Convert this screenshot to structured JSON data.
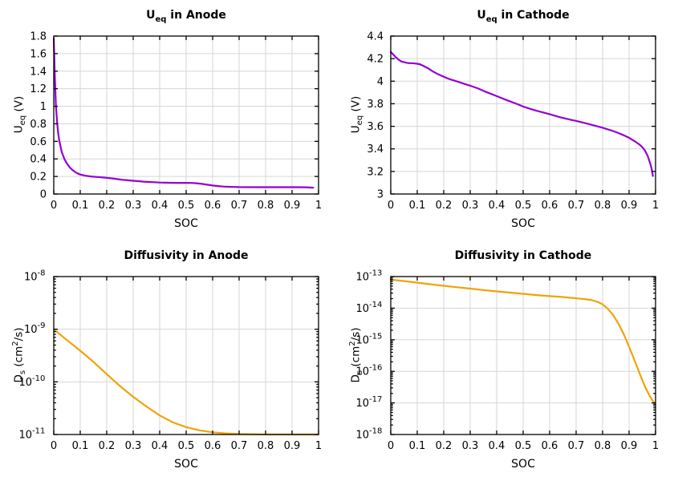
{
  "style": {
    "background": "#ffffff",
    "grid_color": "#d6d6d6",
    "border_color": "#000000",
    "text_color": "#000000",
    "purple": "#9400d3",
    "orange": "#f0a30a"
  },
  "chart_data": [
    {
      "id": "ueq-anode",
      "type": "line",
      "title": {
        "prefix": "U",
        "sub": "eq",
        "rest": " in Anode"
      },
      "xlabel": "SOC",
      "ylabel": {
        "prefix": "U",
        "sub": "eq",
        "mid": " (V)",
        "sup": "",
        "rest": ""
      },
      "color": "#9400d3",
      "grid": true,
      "xlim": [
        0,
        1
      ],
      "x_ticks": [
        0,
        0.1,
        0.2,
        0.3,
        0.4,
        0.5,
        0.6,
        0.7,
        0.8,
        0.9,
        1
      ],
      "x_tick_labels": [
        "0",
        "0.1",
        "0.2",
        "0.3",
        "0.4",
        "0.5",
        "0.6",
        "0.7",
        "0.8",
        "0.9",
        "1"
      ],
      "y_scale": "linear",
      "ylim": [
        0,
        1.8
      ],
      "y_ticks": [
        0,
        0.2,
        0.4,
        0.6,
        0.8,
        1,
        1.2,
        1.4,
        1.6,
        1.8
      ],
      "y_tick_labels": [
        "0",
        "0.2",
        "0.4",
        "0.6",
        "0.8",
        "1",
        "1.2",
        "1.4",
        "1.6",
        "1.8"
      ],
      "points": [
        [
          0,
          1.77
        ],
        [
          0.002,
          1.55
        ],
        [
          0.004,
          1.35
        ],
        [
          0.006,
          1.18
        ],
        [
          0.008,
          1.02
        ],
        [
          0.012,
          0.84
        ],
        [
          0.016,
          0.71
        ],
        [
          0.02,
          0.62
        ],
        [
          0.03,
          0.48
        ],
        [
          0.04,
          0.4
        ],
        [
          0.05,
          0.345
        ],
        [
          0.06,
          0.305
        ],
        [
          0.07,
          0.275
        ],
        [
          0.08,
          0.252
        ],
        [
          0.09,
          0.235
        ],
        [
          0.1,
          0.222
        ],
        [
          0.12,
          0.208
        ],
        [
          0.14,
          0.2
        ],
        [
          0.16,
          0.195
        ],
        [
          0.18,
          0.19
        ],
        [
          0.2,
          0.185
        ],
        [
          0.22,
          0.178
        ],
        [
          0.24,
          0.17
        ],
        [
          0.26,
          0.162
        ],
        [
          0.28,
          0.156
        ],
        [
          0.3,
          0.151
        ],
        [
          0.32,
          0.146
        ],
        [
          0.34,
          0.141
        ],
        [
          0.36,
          0.137
        ],
        [
          0.38,
          0.134
        ],
        [
          0.4,
          0.131
        ],
        [
          0.42,
          0.129
        ],
        [
          0.44,
          0.128
        ],
        [
          0.46,
          0.127
        ],
        [
          0.48,
          0.127
        ],
        [
          0.5,
          0.127
        ],
        [
          0.52,
          0.126
        ],
        [
          0.54,
          0.122
        ],
        [
          0.56,
          0.115
        ],
        [
          0.58,
          0.106
        ],
        [
          0.6,
          0.097
        ],
        [
          0.62,
          0.09
        ],
        [
          0.64,
          0.085
        ],
        [
          0.66,
          0.082
        ],
        [
          0.68,
          0.08
        ],
        [
          0.7,
          0.079
        ],
        [
          0.75,
          0.078
        ],
        [
          0.8,
          0.078
        ],
        [
          0.85,
          0.078
        ],
        [
          0.9,
          0.078
        ],
        [
          0.95,
          0.077
        ],
        [
          0.98,
          0.072
        ]
      ]
    },
    {
      "id": "ueq-cathode",
      "type": "line",
      "title": {
        "prefix": "U",
        "sub": "eq",
        "rest": " in Cathode"
      },
      "xlabel": "SOC",
      "ylabel": {
        "prefix": "U",
        "sub": "eq",
        "mid": " (V)",
        "sup": "",
        "rest": ""
      },
      "color": "#9400d3",
      "grid": true,
      "xlim": [
        0,
        1
      ],
      "x_ticks": [
        0,
        0.1,
        0.2,
        0.3,
        0.4,
        0.5,
        0.6,
        0.7,
        0.8,
        0.9,
        1
      ],
      "x_tick_labels": [
        "0",
        "0.1",
        "0.2",
        "0.3",
        "0.4",
        "0.5",
        "0.6",
        "0.7",
        "0.8",
        "0.9",
        "1"
      ],
      "y_scale": "linear",
      "ylim": [
        3,
        4.4
      ],
      "y_ticks": [
        3,
        3.2,
        3.4,
        3.6,
        3.8,
        4,
        4.2,
        4.4
      ],
      "y_tick_labels": [
        "3",
        "3.2",
        "3.4",
        "3.6",
        "3.8",
        "4",
        "4.2",
        "4.4"
      ],
      "points": [
        [
          0,
          4.26
        ],
        [
          0.01,
          4.235
        ],
        [
          0.02,
          4.21
        ],
        [
          0.03,
          4.19
        ],
        [
          0.04,
          4.175
        ],
        [
          0.05,
          4.168
        ],
        [
          0.06,
          4.163
        ],
        [
          0.07,
          4.16
        ],
        [
          0.08,
          4.16
        ],
        [
          0.09,
          4.158
        ],
        [
          0.1,
          4.155
        ],
        [
          0.11,
          4.15
        ],
        [
          0.12,
          4.14
        ],
        [
          0.14,
          4.115
        ],
        [
          0.16,
          4.085
        ],
        [
          0.18,
          4.06
        ],
        [
          0.2,
          4.04
        ],
        [
          0.22,
          4.02
        ],
        [
          0.25,
          3.998
        ],
        [
          0.28,
          3.975
        ],
        [
          0.3,
          3.96
        ],
        [
          0.33,
          3.935
        ],
        [
          0.36,
          3.905
        ],
        [
          0.4,
          3.868
        ],
        [
          0.44,
          3.83
        ],
        [
          0.48,
          3.795
        ],
        [
          0.5,
          3.775
        ],
        [
          0.54,
          3.745
        ],
        [
          0.58,
          3.72
        ],
        [
          0.6,
          3.708
        ],
        [
          0.64,
          3.68
        ],
        [
          0.68,
          3.658
        ],
        [
          0.7,
          3.648
        ],
        [
          0.74,
          3.625
        ],
        [
          0.78,
          3.6
        ],
        [
          0.8,
          3.588
        ],
        [
          0.84,
          3.558
        ],
        [
          0.86,
          3.54
        ],
        [
          0.88,
          3.52
        ],
        [
          0.9,
          3.498
        ],
        [
          0.92,
          3.47
        ],
        [
          0.94,
          3.437
        ],
        [
          0.95,
          3.415
        ],
        [
          0.96,
          3.385
        ],
        [
          0.97,
          3.34
        ],
        [
          0.98,
          3.27
        ],
        [
          0.985,
          3.225
        ],
        [
          0.99,
          3.16
        ]
      ]
    },
    {
      "id": "diff-anode",
      "type": "line",
      "title": {
        "prefix": "Diffusivity in Anode",
        "sub": "",
        "rest": ""
      },
      "xlabel": "SOC",
      "ylabel": {
        "prefix": "D",
        "sub": "s",
        "mid": " (cm",
        "sup": "2",
        "rest": "/s)"
      },
      "color": "#f0a30a",
      "grid": true,
      "xlim": [
        0,
        1
      ],
      "x_ticks": [
        0,
        0.1,
        0.2,
        0.3,
        0.4,
        0.5,
        0.6,
        0.7,
        0.8,
        0.9,
        1
      ],
      "x_tick_labels": [
        "0",
        "0.1",
        "0.2",
        "0.3",
        "0.4",
        "0.5",
        "0.6",
        "0.7",
        "0.8",
        "0.9",
        "1"
      ],
      "y_scale": "log",
      "ylim_exp": [
        -11,
        -8
      ],
      "y_ticks_exp": [
        -11,
        -10,
        -9,
        -8
      ],
      "y_tick_labels": [
        "-11",
        "-10",
        "-9",
        "-8"
      ],
      "points": [
        [
          0,
          1e-09
        ],
        [
          0.05,
          6.2e-10
        ],
        [
          0.1,
          3.9e-10
        ],
        [
          0.15,
          2.4e-10
        ],
        [
          0.2,
          1.4e-10
        ],
        [
          0.25,
          8.3e-11
        ],
        [
          0.3,
          5.2e-11
        ],
        [
          0.35,
          3.4e-11
        ],
        [
          0.4,
          2.3e-11
        ],
        [
          0.45,
          1.7e-11
        ],
        [
          0.5,
          1.38e-11
        ],
        [
          0.55,
          1.2e-11
        ],
        [
          0.6,
          1.1e-11
        ],
        [
          0.65,
          1.05e-11
        ],
        [
          0.7,
          1.02e-11
        ],
        [
          0.75,
          1.01e-11
        ],
        [
          0.8,
          1e-11
        ],
        [
          0.9,
          1e-11
        ],
        [
          1.0,
          1e-11
        ]
      ]
    },
    {
      "id": "diff-cathode",
      "type": "line",
      "title": {
        "prefix": "Diffusivity in Cathode",
        "sub": "",
        "rest": ""
      },
      "xlabel": "SOC",
      "ylabel": {
        "prefix": "D",
        "sub": "s",
        "mid": " (cm",
        "sup": "2",
        "rest": "/s)"
      },
      "color": "#f0a30a",
      "grid": true,
      "xlim": [
        0,
        1
      ],
      "x_ticks": [
        0,
        0.1,
        0.2,
        0.3,
        0.4,
        0.5,
        0.6,
        0.7,
        0.8,
        0.9,
        1
      ],
      "x_tick_labels": [
        "0",
        "0.1",
        "0.2",
        "0.3",
        "0.4",
        "0.5",
        "0.6",
        "0.7",
        "0.8",
        "0.9",
        "1"
      ],
      "y_scale": "log",
      "ylim_exp": [
        -18,
        -13
      ],
      "y_ticks_exp": [
        -18,
        -17,
        -16,
        -15,
        -14,
        -13
      ],
      "y_tick_labels": [
        "-18",
        "-17",
        "-16",
        "-15",
        "-14",
        "-13"
      ],
      "points": [
        [
          0,
          8e-14
        ],
        [
          0.05,
          7.2e-14
        ],
        [
          0.1,
          6.4e-14
        ],
        [
          0.15,
          5.7e-14
        ],
        [
          0.2,
          5.1e-14
        ],
        [
          0.25,
          4.6e-14
        ],
        [
          0.3,
          4.15e-14
        ],
        [
          0.35,
          3.75e-14
        ],
        [
          0.4,
          3.4e-14
        ],
        [
          0.45,
          3.1e-14
        ],
        [
          0.5,
          2.85e-14
        ],
        [
          0.55,
          2.6e-14
        ],
        [
          0.6,
          2.4e-14
        ],
        [
          0.65,
          2.25e-14
        ],
        [
          0.7,
          2.05e-14
        ],
        [
          0.72,
          1.98e-14
        ],
        [
          0.74,
          1.9e-14
        ],
        [
          0.76,
          1.78e-14
        ],
        [
          0.78,
          1.6e-14
        ],
        [
          0.8,
          1.32e-14
        ],
        [
          0.82,
          9.5e-15
        ],
        [
          0.84,
          6e-15
        ],
        [
          0.86,
          3.2e-15
        ],
        [
          0.88,
          1.5e-15
        ],
        [
          0.9,
          6e-16
        ],
        [
          0.92,
          2.3e-16
        ],
        [
          0.94,
          8.5e-17
        ],
        [
          0.96,
          3.3e-17
        ],
        [
          0.98,
          1.55e-17
        ],
        [
          0.99,
          1.15e-17
        ],
        [
          0.995,
          1e-17
        ]
      ]
    }
  ]
}
